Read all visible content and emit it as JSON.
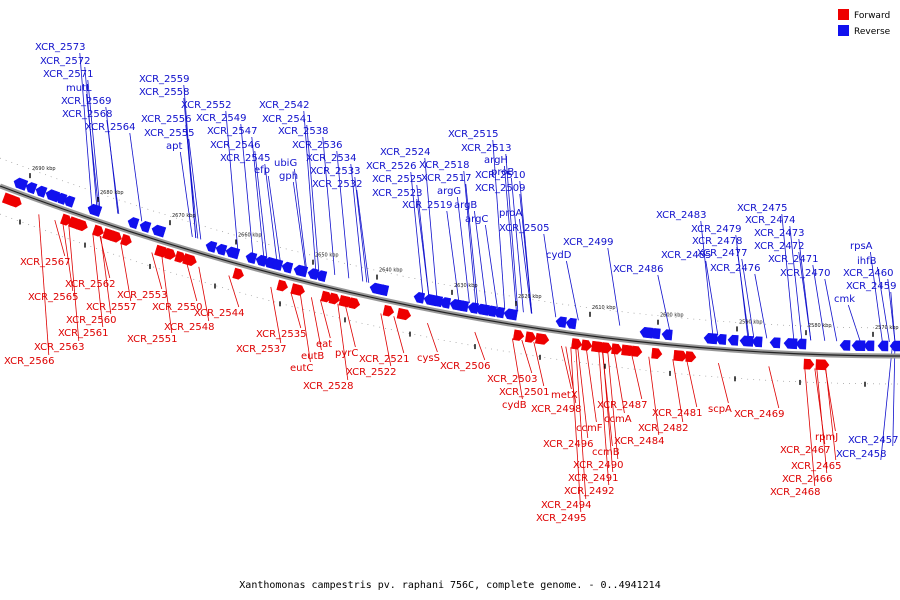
{
  "legend": {
    "forward": {
      "label": "Forward",
      "color": "#ee0000"
    },
    "reverse": {
      "label": "Reverse",
      "color": "#1111ee"
    }
  },
  "caption": "Xanthomonas campestris pv. raphani 756C, complete genome. - 0..4941214",
  "ticks": [
    "2690 kbp",
    "2680 kbp",
    "2670 kbp",
    "2660 kbp",
    "2650 kbp",
    "2640 kbp",
    "2630 kbp",
    "2620 kbp",
    "2610 kbp",
    "2600 kbp",
    "2590 kbp",
    "2580 kbp",
    "2570 kbp"
  ],
  "reverse_labels": [
    "XCR_2573",
    "XCR_2572",
    "XCR_2571",
    "mutL",
    "XCR_2569",
    "XCR_2568",
    "XCR_2564",
    "XCR_2559",
    "XCR_2558",
    "XCR_2556",
    "XCR_2555",
    "apt",
    "XCR_2552",
    "XCR_2549",
    "XCR_2547",
    "XCR_2546",
    "XCR_2545",
    "efp",
    "XCR_2542",
    "XCR_2541",
    "XCR_2538",
    "ubiG",
    "gph",
    "XCR_2536",
    "XCR_2534",
    "XCR_2533",
    "XCR_2532",
    "XCR_2524",
    "XCR_2526",
    "XCR_2525",
    "XCR_2523",
    "XCR_2518",
    "XCR_2517",
    "argG",
    "XCR_2519",
    "argB",
    "XCR_2515",
    "XCR_2513",
    "argH",
    "XCR_2510",
    "XCR_2509",
    "proB",
    "argC",
    "proA",
    "XCR_2505",
    "XCR_2499",
    "cydD",
    "XCR_2483",
    "XCR_2486",
    "XCR_2485",
    "XCR_2479",
    "XCR_2478",
    "XCR_2477",
    "XCR_2476",
    "XCR_2475",
    "XCR_2474",
    "XCR_2473",
    "XCR_2472",
    "XCR_2471",
    "XCR_2470",
    "rpsA",
    "ihfB",
    "XCR_2460",
    "XCR_2459",
    "cmk",
    "XCR_2457",
    "XCR_2458"
  ],
  "forward_labels": [
    "XCR_2567",
    "XCR_2562",
    "XCR_2565",
    "XCR_2557",
    "XCR_2560",
    "XCR_2561",
    "XCR_2563",
    "XCR_2566",
    "XCR_2553",
    "XCR_2550",
    "XCR_2548",
    "XCR_2551",
    "XCR_2544",
    "XCR_2535",
    "XCR_2537",
    "eat",
    "eutB",
    "eutC",
    "pyrC",
    "XCR_2528",
    "XCR_2521",
    "XCR_2522",
    "cysS",
    "XCR_2506",
    "XCR_2503",
    "XCR_2501",
    "cydB",
    "metX",
    "XCR_2498",
    "ccmF",
    "XCR_2496",
    "ccmB",
    "XCR_2490",
    "XCR_2491",
    "XCR_2492",
    "XCR_2494",
    "XCR_2495",
    "XCR_2487",
    "ccmA",
    "XCR_2484",
    "XCR_2481",
    "XCR_2482",
    "scpA",
    "XCR_2469",
    "rpmJ",
    "XCR_2467",
    "XCR_2465",
    "XCR_2466",
    "XCR_2468"
  ]
}
